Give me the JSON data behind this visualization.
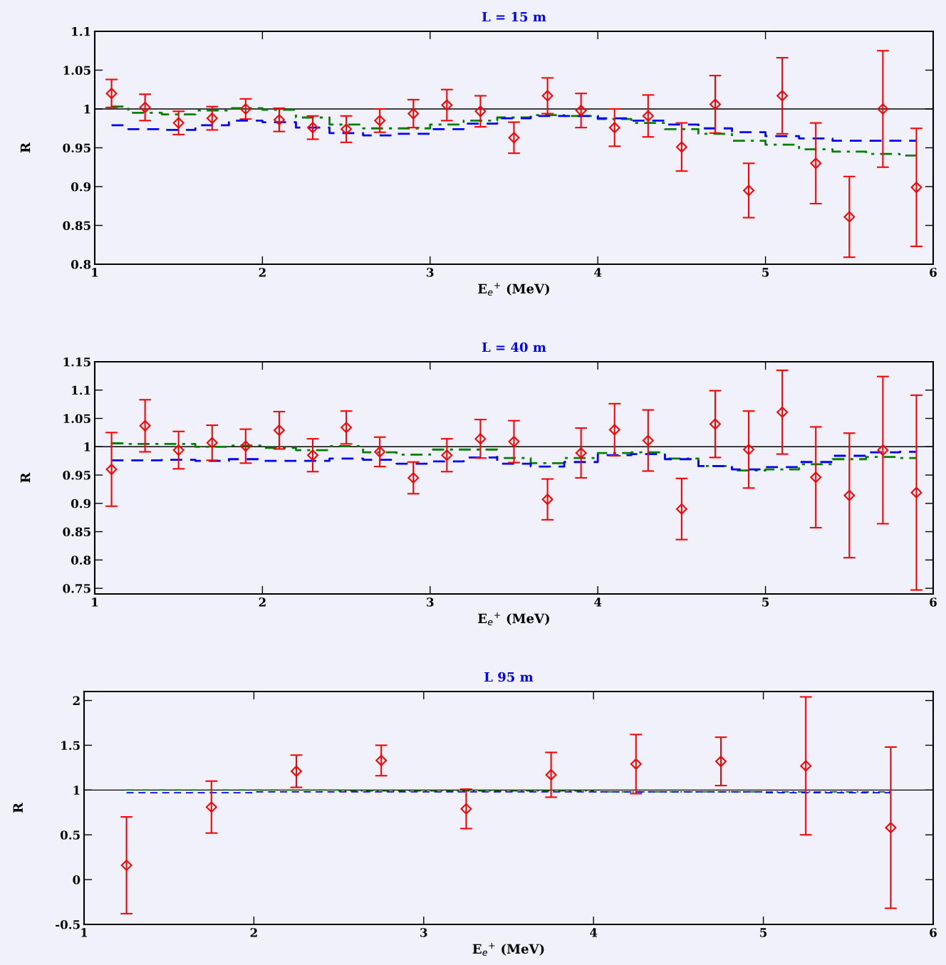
{
  "chart_data": [
    {
      "type": "scatter",
      "title": "L = 15 m",
      "xlabel": "E$_{e}$$^{+}$ (MeV)",
      "ylabel": "R",
      "xlim": [
        1,
        6
      ],
      "xticks": [
        1,
        2,
        3,
        4,
        5,
        6
      ],
      "ylim": [
        0.8,
        1.1
      ],
      "yticks": [
        0.8,
        0.85,
        0.9,
        0.95,
        1,
        1.05,
        1.1
      ],
      "grid": false,
      "legend": false,
      "ref_lines": [
        {
          "axis": "y",
          "value": 1,
          "color": "#000000",
          "line_style": "solid"
        }
      ],
      "series": [
        {
          "type": "step",
          "color": "#008000",
          "line_style": "dashdot",
          "x": [
            1.1,
            1.3,
            1.5,
            1.7,
            1.9,
            2.1,
            2.3,
            2.5,
            2.7,
            2.9,
            3.1,
            3.3,
            3.5,
            3.7,
            3.9,
            4.1,
            4.3,
            4.5,
            4.7,
            4.9,
            5.1,
            5.3,
            5.5,
            5.7,
            5.9
          ],
          "values": [
            1.003,
            0.995,
            0.993,
            0.998,
            1.001,
            0.999,
            0.989,
            0.98,
            0.975,
            0.975,
            0.98,
            0.985,
            0.989,
            0.992,
            0.991,
            0.987,
            0.982,
            0.974,
            0.968,
            0.959,
            0.954,
            0.948,
            0.945,
            0.942,
            0.94
          ]
        },
        {
          "type": "step",
          "color": "#0000ff",
          "line_style": "dashed",
          "x": [
            1.1,
            1.3,
            1.5,
            1.7,
            1.9,
            2.1,
            2.3,
            2.5,
            2.7,
            2.9,
            3.1,
            3.3,
            3.5,
            3.7,
            3.9,
            4.1,
            4.3,
            4.5,
            4.7,
            4.9,
            5.1,
            5.3,
            5.5,
            5.7,
            5.9
          ],
          "values": [
            0.979,
            0.974,
            0.973,
            0.979,
            0.985,
            0.983,
            0.976,
            0.969,
            0.966,
            0.968,
            0.974,
            0.981,
            0.988,
            0.991,
            0.991,
            0.988,
            0.985,
            0.98,
            0.975,
            0.97,
            0.965,
            0.962,
            0.959,
            0.959,
            0.959
          ]
        },
        {
          "color": "#ff0000",
          "marker": "diamond",
          "x": [
            1.1,
            1.3,
            1.5,
            1.7,
            1.9,
            2.1,
            2.3,
            2.5,
            2.7,
            2.9,
            3.1,
            3.3,
            3.5,
            3.7,
            3.9,
            4.1,
            4.3,
            4.5,
            4.7,
            4.9,
            5.1,
            5.3,
            5.5,
            5.7,
            5.9
          ],
          "values": [
            1.02,
            1.002,
            0.982,
            0.988,
            1.0,
            0.986,
            0.976,
            0.974,
            0.985,
            0.994,
            1.005,
            0.997,
            0.963,
            1.017,
            0.998,
            0.976,
            0.991,
            0.951,
            1.006,
            0.895,
            1.017,
            0.93,
            0.861,
            1.0,
            0.899
          ],
          "errors": [
            0.018,
            0.017,
            0.015,
            0.015,
            0.013,
            0.015,
            0.015,
            0.017,
            0.015,
            0.018,
            0.02,
            0.02,
            0.02,
            0.023,
            0.022,
            0.024,
            0.027,
            0.031,
            0.037,
            0.035,
            0.049,
            0.052,
            0.052,
            0.075,
            0.076
          ]
        }
      ]
    },
    {
      "type": "scatter",
      "title": "L = 40 m",
      "xlabel": "E$_{e}$$^{+}$ (MeV)",
      "ylabel": "R",
      "xlim": [
        1,
        6
      ],
      "xticks": [
        1,
        2,
        3,
        4,
        5,
        6
      ],
      "ylim": [
        0.74,
        1.15
      ],
      "yticks": [
        0.75,
        0.8,
        0.85,
        0.9,
        0.95,
        1,
        1.05,
        1.1,
        1.15
      ],
      "grid": false,
      "legend": false,
      "ref_lines": [
        {
          "axis": "y",
          "value": 1,
          "color": "#000000",
          "line_style": "solid"
        }
      ],
      "series": [
        {
          "type": "step",
          "color": "#008000",
          "line_style": "dashdot",
          "x": [
            1.1,
            1.3,
            1.5,
            1.7,
            1.9,
            2.1,
            2.3,
            2.5,
            2.7,
            2.9,
            3.1,
            3.3,
            3.5,
            3.7,
            3.9,
            4.1,
            4.3,
            4.5,
            4.7,
            4.9,
            5.1,
            5.3,
            5.5,
            5.7,
            5.9
          ],
          "values": [
            1.006,
            1.005,
            1.005,
            1.0,
            1.002,
            0.998,
            0.994,
            1.001,
            0.99,
            0.986,
            0.995,
            0.995,
            0.98,
            0.971,
            0.98,
            0.989,
            0.99,
            0.979,
            0.966,
            0.958,
            0.96,
            0.969,
            0.978,
            0.982,
            0.98
          ]
        },
        {
          "type": "step",
          "color": "#0000ff",
          "line_style": "dashed",
          "x": [
            1.1,
            1.3,
            1.5,
            1.7,
            1.9,
            2.1,
            2.3,
            2.5,
            2.7,
            2.9,
            3.1,
            3.3,
            3.5,
            3.7,
            3.9,
            4.1,
            4.3,
            4.5,
            4.7,
            4.9,
            5.1,
            5.3,
            5.5,
            5.7,
            5.9
          ],
          "values": [
            0.976,
            0.976,
            0.977,
            0.975,
            0.978,
            0.975,
            0.975,
            0.979,
            0.977,
            0.97,
            0.974,
            0.981,
            0.97,
            0.965,
            0.973,
            0.985,
            0.987,
            0.978,
            0.966,
            0.96,
            0.964,
            0.973,
            0.984,
            0.99,
            0.991
          ]
        },
        {
          "color": "#ff0000",
          "marker": "diamond",
          "x": [
            1.1,
            1.3,
            1.5,
            1.7,
            1.9,
            2.1,
            2.3,
            2.5,
            2.7,
            2.9,
            3.1,
            3.3,
            3.5,
            3.7,
            3.9,
            4.1,
            4.3,
            4.5,
            4.7,
            4.9,
            5.1,
            5.3,
            5.5,
            5.7,
            5.9
          ],
          "values": [
            0.96,
            1.037,
            0.994,
            1.007,
            1.001,
            1.029,
            0.985,
            1.034,
            0.991,
            0.945,
            0.985,
            1.014,
            1.009,
            0.907,
            0.989,
            1.03,
            1.011,
            0.89,
            1.04,
            0.995,
            1.061,
            0.946,
            0.914,
            0.994,
            0.919
          ],
          "errors": [
            0.065,
            0.046,
            0.033,
            0.031,
            0.03,
            0.033,
            0.029,
            0.029,
            0.026,
            0.028,
            0.029,
            0.034,
            0.037,
            0.036,
            0.044,
            0.046,
            0.054,
            0.054,
            0.059,
            0.068,
            0.074,
            0.089,
            0.11,
            0.13,
            0.172
          ]
        }
      ]
    },
    {
      "type": "scatter",
      "title": "L 95 m",
      "xlabel": "E$_{e}$$^{+}$ (MeV)",
      "ylabel": "R",
      "xlim": [
        1,
        6
      ],
      "xticks": [
        1,
        2,
        3,
        4,
        5,
        6
      ],
      "ylim": [
        -0.5,
        2.1
      ],
      "yticks": [
        -0.5,
        0,
        0.5,
        1,
        1.5,
        2
      ],
      "grid": false,
      "legend": false,
      "ref_lines": [
        {
          "axis": "y",
          "value": 1,
          "color": "#000000",
          "line_style": "solid"
        }
      ],
      "series": [
        {
          "type": "step",
          "color": "#008000",
          "line_style": "dashdot",
          "x": [
            1.25,
            1.75,
            2.25,
            2.75,
            3.25,
            3.75,
            4.25,
            4.75,
            5.25,
            5.75
          ],
          "values": [
            1.0,
            1.0,
            1.0,
            0.99,
            0.99,
            0.99,
            0.98,
            0.98,
            0.98,
            0.98
          ]
        },
        {
          "type": "step",
          "color": "#0000ff",
          "line_style": "dashed",
          "x": [
            1.25,
            1.75,
            2.25,
            2.75,
            3.25,
            3.75,
            4.25,
            4.75,
            5.25,
            5.75
          ],
          "values": [
            0.97,
            0.97,
            0.98,
            0.98,
            0.98,
            0.98,
            0.98,
            0.98,
            0.97,
            0.97
          ]
        },
        {
          "color": "#ff0000",
          "marker": "diamond",
          "x": [
            1.25,
            1.75,
            2.25,
            2.75,
            3.25,
            3.75,
            4.25,
            4.75,
            5.25,
            5.75
          ],
          "values": [
            0.16,
            0.81,
            1.21,
            1.33,
            0.79,
            1.17,
            1.29,
            1.32,
            1.27,
            0.58
          ],
          "errors": [
            0.54,
            0.29,
            0.18,
            0.17,
            0.22,
            0.25,
            0.33,
            0.27,
            0.77,
            0.9
          ]
        }
      ]
    }
  ]
}
